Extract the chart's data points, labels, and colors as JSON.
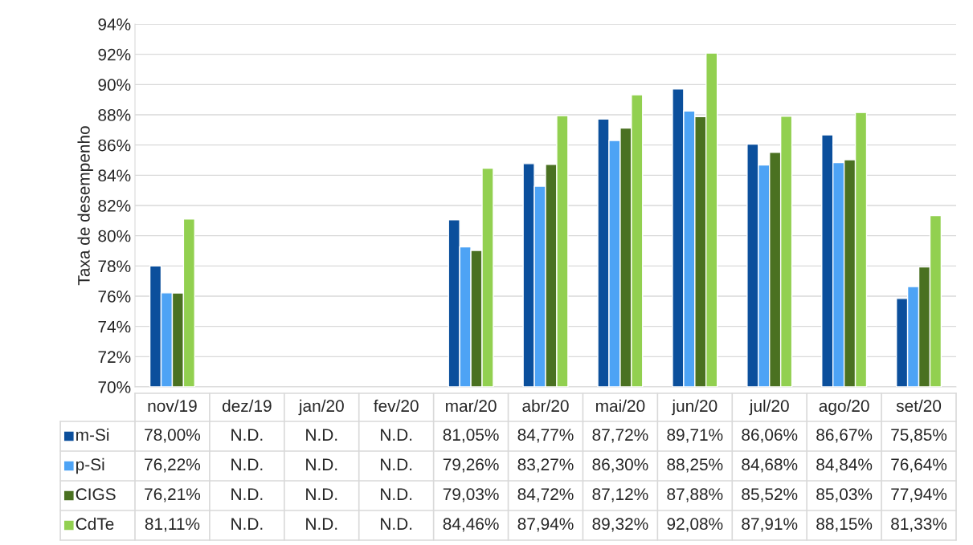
{
  "chart_data": {
    "type": "bar",
    "ylabel": "Taxa de desempenho",
    "categories": [
      "nov/19",
      "dez/19",
      "jan/20",
      "fev/20",
      "mar/20",
      "abr/20",
      "mai/20",
      "jun/20",
      "jul/20",
      "ago/20",
      "set/20"
    ],
    "series": [
      {
        "name": "m-Si",
        "color": "#0b4f9c",
        "values": [
          78.0,
          null,
          null,
          null,
          81.05,
          84.77,
          87.72,
          89.71,
          86.06,
          86.67,
          75.85
        ],
        "value_labels": [
          "78,00%",
          "N.D.",
          "N.D.",
          "N.D.",
          "81,05%",
          "84,77%",
          "87,72%",
          "89,71%",
          "86,06%",
          "86,67%",
          "75,85%"
        ]
      },
      {
        "name": "p-Si",
        "color": "#4da3f5",
        "values": [
          76.22,
          null,
          null,
          null,
          79.26,
          83.27,
          86.3,
          88.25,
          84.68,
          84.84,
          76.64
        ],
        "value_labels": [
          "76,22%",
          "N.D.",
          "N.D.",
          "N.D.",
          "79,26%",
          "83,27%",
          "86,30%",
          "88,25%",
          "84,68%",
          "84,84%",
          "76,64%"
        ]
      },
      {
        "name": "CIGS",
        "color": "#4a7121",
        "values": [
          76.21,
          null,
          null,
          null,
          79.03,
          84.72,
          87.12,
          87.88,
          85.52,
          85.03,
          77.94
        ],
        "value_labels": [
          "76,21%",
          "N.D.",
          "N.D.",
          "N.D.",
          "79,03%",
          "84,72%",
          "87,12%",
          "87,88%",
          "85,52%",
          "85,03%",
          "77,94%"
        ]
      },
      {
        "name": "CdTe",
        "color": "#92d050",
        "values": [
          81.11,
          null,
          null,
          null,
          84.46,
          87.94,
          89.32,
          92.08,
          87.91,
          88.15,
          81.33
        ],
        "value_labels": [
          "81,11%",
          "N.D.",
          "N.D.",
          "N.D.",
          "84,46%",
          "87,94%",
          "89,32%",
          "92,08%",
          "87,91%",
          "88,15%",
          "81,33%"
        ]
      }
    ],
    "ylim": [
      70,
      94
    ],
    "yticks": [
      {
        "value": 70,
        "label": "70%"
      },
      {
        "value": 72,
        "label": "72%"
      },
      {
        "value": 74,
        "label": "74%"
      },
      {
        "value": 76,
        "label": "76%"
      },
      {
        "value": 78,
        "label": "78%"
      },
      {
        "value": 80,
        "label": "80%"
      },
      {
        "value": 82,
        "label": "82%"
      },
      {
        "value": 84,
        "label": "84%"
      },
      {
        "value": 86,
        "label": "86%"
      },
      {
        "value": 88,
        "label": "88%"
      },
      {
        "value": 90,
        "label": "90%"
      },
      {
        "value": 92,
        "label": "92%"
      },
      {
        "value": 94,
        "label": "94%"
      }
    ],
    "grid": "y",
    "legend": "bottom"
  }
}
